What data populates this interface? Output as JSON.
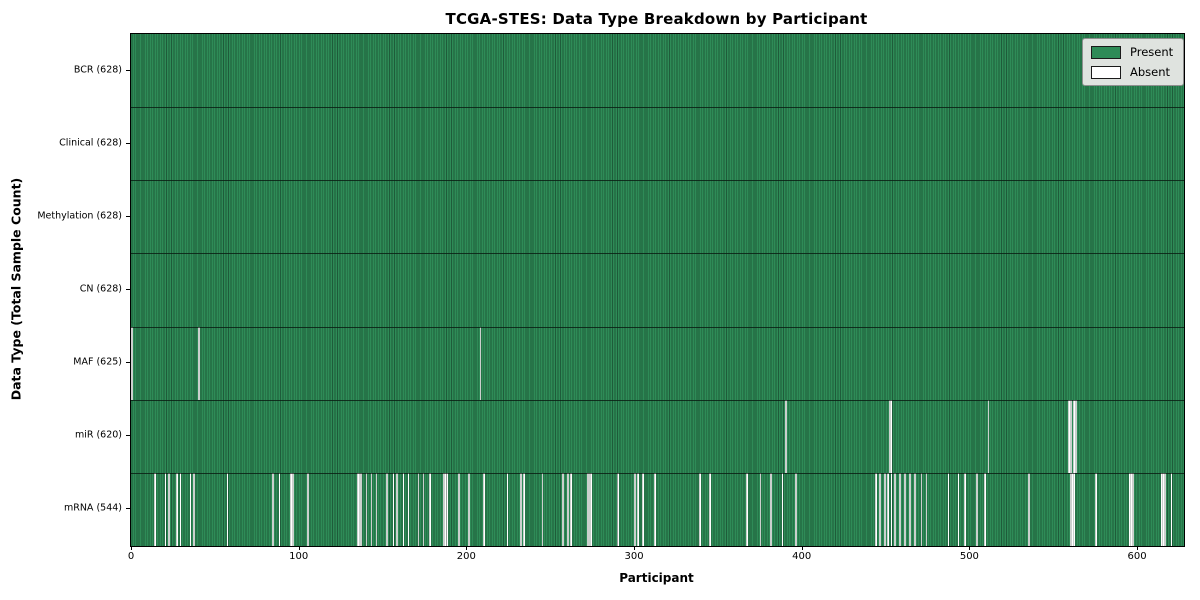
{
  "chart_data": {
    "type": "heatmap",
    "title": "TCGA-STES: Data Type Breakdown by Participant",
    "xlabel": "Participant",
    "ylabel": "Data Type (Total Sample Count)",
    "n_participants": 628,
    "x_ticks": [
      0,
      100,
      200,
      300,
      400,
      500,
      600
    ],
    "xlim": [
      0,
      628
    ],
    "grid": false,
    "legend_position": "upper right",
    "colors": {
      "present": "#2e8b57",
      "absent": "#ffffff"
    },
    "rows": [
      {
        "label": "BCR (628)",
        "data_type": "BCR",
        "present_count": 628,
        "absent_participants": []
      },
      {
        "label": "Clinical (628)",
        "data_type": "Clinical",
        "present_count": 628,
        "absent_participants": []
      },
      {
        "label": "Methylation (628)",
        "data_type": "Methylation",
        "present_count": 628,
        "absent_participants": []
      },
      {
        "label": "CN (628)",
        "data_type": "CN",
        "present_count": 628,
        "absent_participants": []
      },
      {
        "label": "MAF (625)",
        "data_type": "MAF",
        "present_count": 625,
        "absent_participants": [
          0,
          40,
          208
        ]
      },
      {
        "label": "miR (620)",
        "data_type": "miR",
        "present_count": 620,
        "absent_participants": [
          390,
          452,
          453,
          511,
          559,
          560,
          562,
          563
        ]
      },
      {
        "label": "mRNA (544)",
        "data_type": "mRNA",
        "present_count": 544,
        "absent_participants": [
          14,
          20,
          22,
          27,
          29,
          35,
          37,
          57,
          84,
          88,
          95,
          96,
          105,
          135,
          136,
          137,
          140,
          143,
          146,
          152,
          156,
          158,
          162,
          165,
          171,
          174,
          178,
          186,
          187,
          188,
          195,
          201,
          210,
          224,
          232,
          234,
          245,
          257,
          260,
          262,
          272,
          273,
          274,
          290,
          300,
          302,
          305,
          312,
          339,
          345,
          367,
          375,
          381,
          388,
          396,
          444,
          446,
          449,
          451,
          453,
          455,
          458,
          461,
          464,
          467,
          471,
          474,
          487,
          493,
          497,
          504,
          509,
          535,
          560,
          561,
          562,
          575,
          595,
          596,
          597,
          614,
          615,
          616,
          620
        ]
      }
    ]
  },
  "legend": {
    "present_label": "Present",
    "absent_label": "Absent"
  }
}
